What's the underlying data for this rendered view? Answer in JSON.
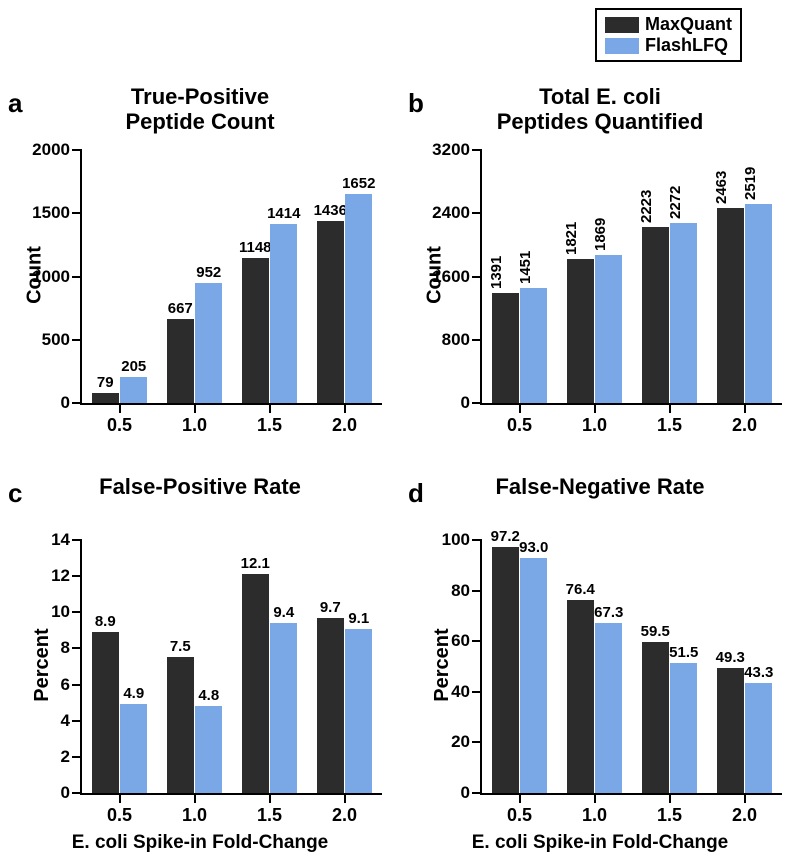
{
  "colors": {
    "maxquant": "#2c2c2c",
    "flashlfq": "#7aa8e6",
    "axis": "#000000",
    "text": "#000000",
    "background": "#ffffff"
  },
  "legend": {
    "items": [
      {
        "label": "MaxQuant",
        "color": "#2c2c2c"
      },
      {
        "label": "FlashLFQ",
        "color": "#7aa8e6"
      }
    ]
  },
  "bar_width": 0.36,
  "bar_gap": 0.02,
  "panels": [
    {
      "letter": "a",
      "title": "True-Positive\nPeptide Count",
      "ylabel": "Count",
      "xlabel": "E. coli Spike-in Fold-Change",
      "ylim": [
        0,
        2000
      ],
      "yticks": [
        0,
        500,
        1000,
        1500,
        2000
      ],
      "categories": [
        "0.5",
        "1.0",
        "1.5",
        "2.0"
      ],
      "series": [
        {
          "name": "MaxQuant",
          "color": "#2c2c2c",
          "values": [
            79,
            667,
            1148,
            1436
          ],
          "labels": [
            "79",
            "667",
            "1148",
            "1436"
          ]
        },
        {
          "name": "FlashLFQ",
          "color": "#7aa8e6",
          "values": [
            205,
            952,
            1414,
            1652
          ],
          "labels": [
            "205",
            "952",
            "1414",
            "1652"
          ]
        }
      ],
      "show_xlabel": false
    },
    {
      "letter": "b",
      "title": "Total E. coli\nPeptides Quantified",
      "ylabel": "Count",
      "xlabel": "E. coli Spike-in Fold-Change",
      "ylim": [
        0,
        3200
      ],
      "yticks": [
        0,
        800,
        1600,
        2400,
        3200
      ],
      "categories": [
        "0.5",
        "1.0",
        "1.5",
        "2.0"
      ],
      "series": [
        {
          "name": "MaxQuant",
          "color": "#2c2c2c",
          "values": [
            1391,
            1821,
            2223,
            2463
          ],
          "labels": [
            "1391",
            "1821",
            "2223",
            "2463"
          ]
        },
        {
          "name": "FlashLFQ",
          "color": "#7aa8e6",
          "values": [
            1451,
            1869,
            2272,
            2519
          ],
          "labels": [
            "1451",
            "1869",
            "2272",
            "2519"
          ]
        }
      ],
      "show_xlabel": false,
      "label_rotate": true
    },
    {
      "letter": "c",
      "title": "False-Positive Rate",
      "ylabel": "Percent",
      "xlabel": "E. coli Spike-in Fold-Change",
      "ylim": [
        0,
        14
      ],
      "yticks": [
        0,
        2,
        4,
        6,
        8,
        10,
        12,
        14
      ],
      "categories": [
        "0.5",
        "1.0",
        "1.5",
        "2.0"
      ],
      "series": [
        {
          "name": "MaxQuant",
          "color": "#2c2c2c",
          "values": [
            8.9,
            7.5,
            12.1,
            9.7
          ],
          "labels": [
            "8.9",
            "7.5",
            "12.1",
            "9.7"
          ]
        },
        {
          "name": "FlashLFQ",
          "color": "#7aa8e6",
          "values": [
            4.9,
            4.8,
            9.4,
            9.1
          ],
          "labels": [
            "4.9",
            "4.8",
            "9.4",
            "9.1"
          ]
        }
      ],
      "show_xlabel": true
    },
    {
      "letter": "d",
      "title": "False-Negative Rate",
      "ylabel": "Percent",
      "xlabel": "E. coli Spike-in Fold-Change",
      "ylim": [
        0,
        100
      ],
      "yticks": [
        0,
        20,
        40,
        60,
        80,
        100
      ],
      "categories": [
        "0.5",
        "1.0",
        "1.5",
        "2.0"
      ],
      "series": [
        {
          "name": "MaxQuant",
          "color": "#2c2c2c",
          "values": [
            97.2,
            76.4,
            59.5,
            49.3
          ],
          "labels": [
            "97.2",
            "76.4",
            "59.5",
            "49.3"
          ]
        },
        {
          "name": "FlashLFQ",
          "color": "#7aa8e6",
          "values": [
            93.0,
            67.3,
            51.5,
            43.3
          ],
          "labels": [
            "93.0",
            "67.3",
            "51.5",
            "43.3"
          ]
        }
      ],
      "show_xlabel": true
    }
  ]
}
